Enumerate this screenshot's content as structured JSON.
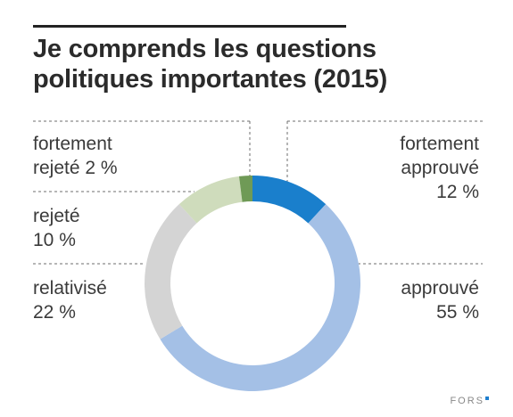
{
  "header": {
    "title_line1": "Je comprends les questions",
    "title_line2": "politiques importantes (2015)"
  },
  "chart_data": {
    "type": "pie",
    "style": "donut",
    "start": "top",
    "direction": "clockwise",
    "slices": [
      {
        "id": "fortement-approuve",
        "name_line1": "fortement",
        "name_line2": "approuvé",
        "value": 12,
        "value_label": "12 %",
        "color": "#1a7fcc"
      },
      {
        "id": "approuve",
        "name_line1": "approuvé",
        "name_line2": "",
        "value": 55,
        "value_label": "55 %",
        "color": "#a4c0e6"
      },
      {
        "id": "relativise",
        "name_line1": "relativisé",
        "name_line2": "",
        "value": 22,
        "value_label": "22 %",
        "color": "#d4d4d4"
      },
      {
        "id": "rejete",
        "name_line1": "rejeté",
        "name_line2": "",
        "value": 10,
        "value_label": "10 %",
        "color": "#cfdcbc"
      },
      {
        "id": "fortement-rejete",
        "name_line1": "fortement",
        "name_line2": "rejeté",
        "value": 2,
        "value_label": "2 %",
        "color": "#6f9a56"
      }
    ]
  },
  "footer": {
    "brand": "FORS"
  }
}
